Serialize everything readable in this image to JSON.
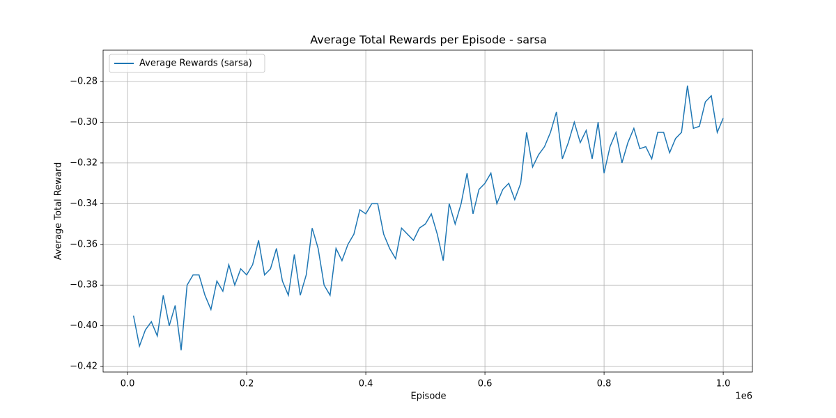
{
  "chart_data": {
    "type": "line",
    "title": "Average Total Rewards per Episode - sarsa",
    "x_label": "Episode",
    "y_label": "Average Total Reward",
    "x_offset_label": "1e6",
    "legend": "upper left",
    "grid": true,
    "xlim": [
      -41000,
      1049000
    ],
    "ylim": [
      -0.4227,
      -0.2646
    ],
    "xticks": [
      {
        "value": 0,
        "label": "0.0"
      },
      {
        "value": 200000,
        "label": "0.2"
      },
      {
        "value": 400000,
        "label": "0.4"
      },
      {
        "value": 600000,
        "label": "0.6"
      },
      {
        "value": 800000,
        "label": "0.8"
      },
      {
        "value": 1000000,
        "label": "1.0"
      }
    ],
    "yticks": [
      {
        "value": -0.42,
        "label": "−0.42"
      },
      {
        "value": -0.4,
        "label": "−0.40"
      },
      {
        "value": -0.38,
        "label": "−0.38"
      },
      {
        "value": -0.36,
        "label": "−0.36"
      },
      {
        "value": -0.34,
        "label": "−0.34"
      },
      {
        "value": -0.32,
        "label": "−0.32"
      },
      {
        "value": -0.3,
        "label": "−0.30"
      },
      {
        "value": -0.28,
        "label": "−0.28"
      }
    ],
    "x": [
      10000,
      20000,
      30000,
      40000,
      50000,
      60000,
      70000,
      80000,
      90000,
      100000,
      110000,
      120000,
      130000,
      140000,
      150000,
      160000,
      170000,
      180000,
      190000,
      200000,
      210000,
      220000,
      230000,
      240000,
      250000,
      260000,
      270000,
      280000,
      290000,
      300000,
      310000,
      320000,
      330000,
      340000,
      350000,
      360000,
      370000,
      380000,
      390000,
      400000,
      410000,
      420000,
      430000,
      440000,
      450000,
      460000,
      470000,
      480000,
      490000,
      500000,
      510000,
      520000,
      530000,
      540000,
      550000,
      560000,
      570000,
      580000,
      590000,
      600000,
      610000,
      620000,
      630000,
      640000,
      650000,
      660000,
      670000,
      680000,
      690000,
      700000,
      710000,
      720000,
      730000,
      740000,
      750000,
      760000,
      770000,
      780000,
      790000,
      800000,
      810000,
      820000,
      830000,
      840000,
      850000,
      860000,
      870000,
      880000,
      890000,
      900000,
      910000,
      920000,
      930000,
      940000,
      950000,
      960000,
      970000,
      980000,
      990000,
      1000000
    ],
    "series": [
      {
        "name": "Average Rewards (sarsa)",
        "color": "#1f77b4",
        "values": [
          -0.395,
          -0.41,
          -0.402,
          -0.398,
          -0.405,
          -0.385,
          -0.4,
          -0.39,
          -0.412,
          -0.38,
          -0.375,
          -0.375,
          -0.385,
          -0.392,
          -0.378,
          -0.383,
          -0.37,
          -0.38,
          -0.372,
          -0.375,
          -0.37,
          -0.358,
          -0.375,
          -0.372,
          -0.362,
          -0.378,
          -0.385,
          -0.365,
          -0.385,
          -0.375,
          -0.352,
          -0.362,
          -0.38,
          -0.385,
          -0.362,
          -0.368,
          -0.36,
          -0.355,
          -0.343,
          -0.345,
          -0.34,
          -0.34,
          -0.355,
          -0.362,
          -0.367,
          -0.352,
          -0.355,
          -0.358,
          -0.352,
          -0.35,
          -0.345,
          -0.355,
          -0.368,
          -0.34,
          -0.35,
          -0.34,
          -0.325,
          -0.345,
          -0.333,
          -0.33,
          -0.325,
          -0.34,
          -0.333,
          -0.33,
          -0.338,
          -0.33,
          -0.305,
          -0.322,
          -0.316,
          -0.312,
          -0.305,
          -0.295,
          -0.318,
          -0.31,
          -0.3,
          -0.31,
          -0.304,
          -0.318,
          -0.3,
          -0.325,
          -0.312,
          -0.305,
          -0.32,
          -0.31,
          -0.303,
          -0.313,
          -0.312,
          -0.318,
          -0.305,
          -0.305,
          -0.315,
          -0.308,
          -0.305,
          -0.282,
          -0.303,
          -0.302,
          -0.29,
          -0.287,
          -0.305,
          -0.298
        ]
      }
    ]
  }
}
